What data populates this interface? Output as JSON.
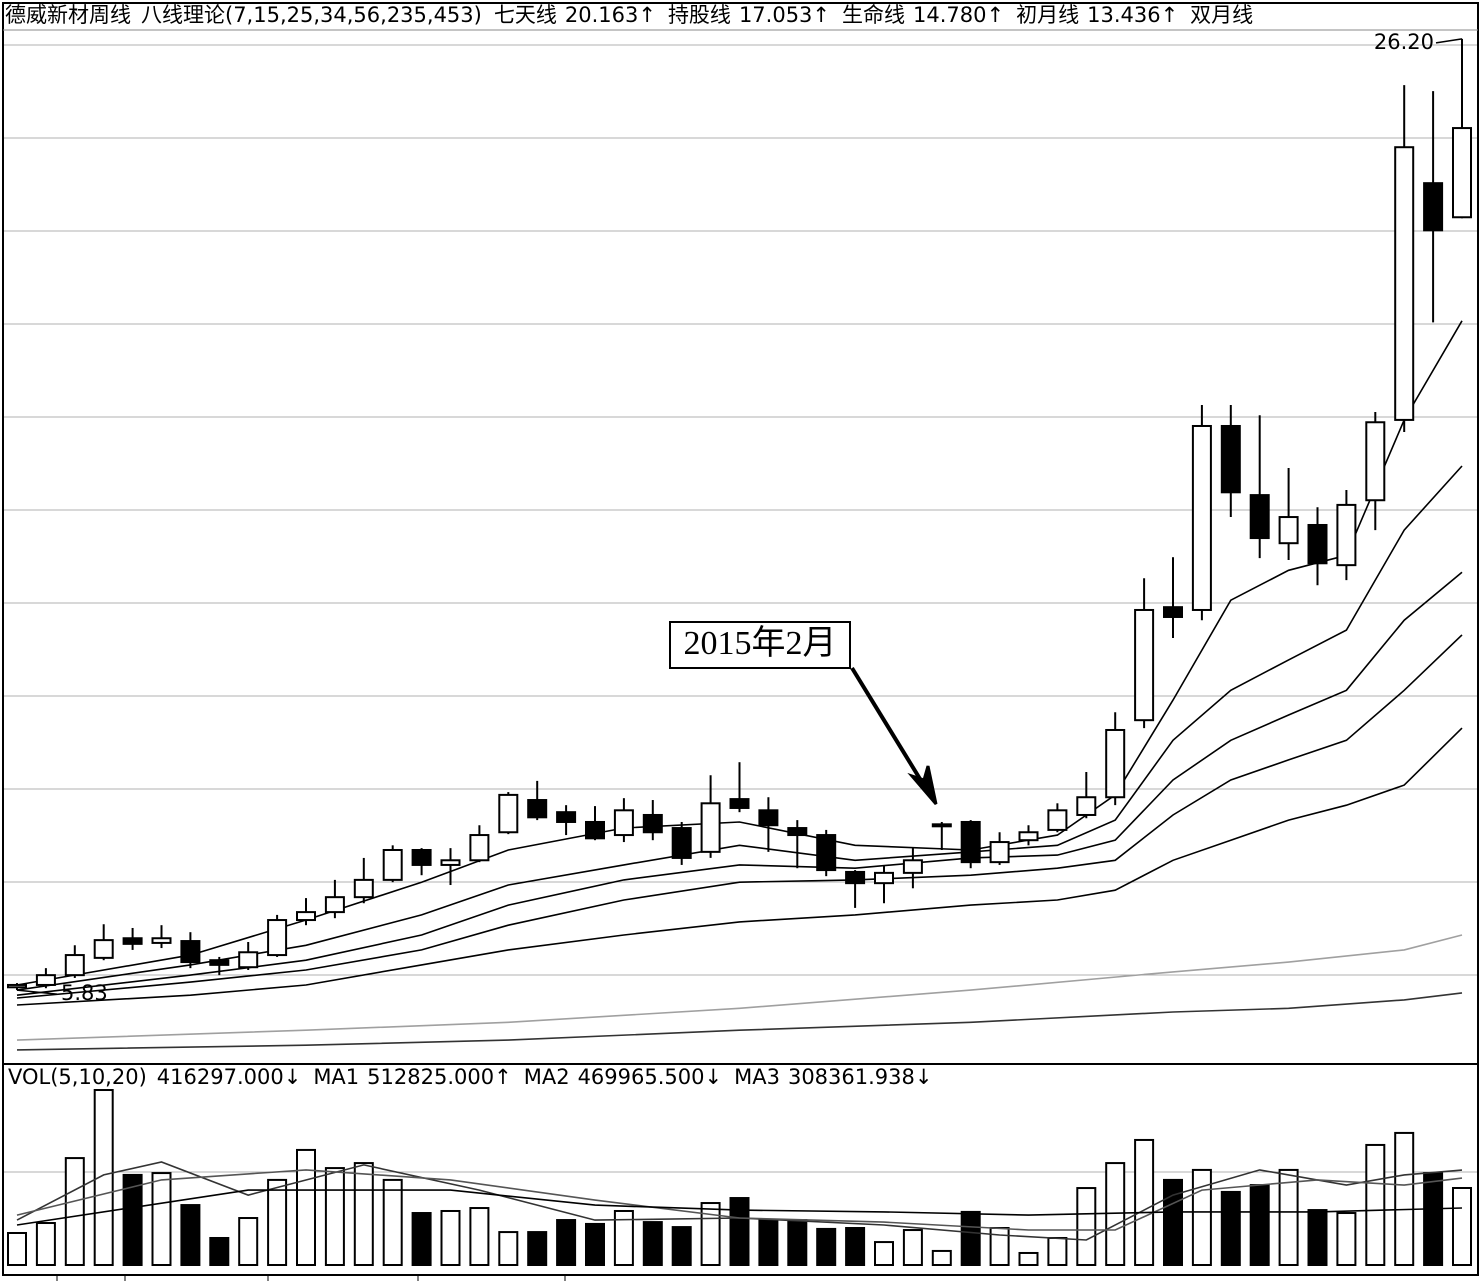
{
  "chart_data": [
    {
      "type": "candlestick",
      "title": "德威新材周线",
      "subtitle": "八线理论(7,15,25,34,56,235,453)",
      "max_label": "26.20",
      "min_label": "5.83",
      "annotation": "2015年2月",
      "ylim": [
        4.29,
        26.39
      ],
      "categories": [
        null,
        null,
        null,
        null,
        null,
        null,
        null,
        null,
        null,
        null,
        null,
        null,
        null,
        null,
        null,
        null,
        null,
        null,
        null,
        null,
        null,
        null,
        null,
        null,
        null,
        null,
        null,
        null,
        null,
        null,
        null,
        null,
        null,
        null,
        null,
        null,
        null,
        null,
        null,
        null,
        null,
        null,
        null,
        null,
        null,
        null,
        null,
        null,
        null,
        null,
        null
      ],
      "open": [
        5.89,
        5.94,
        6.15,
        6.52,
        6.94,
        6.84,
        6.88,
        6.47,
        6.32,
        6.58,
        7.33,
        7.5,
        7.82,
        8.19,
        8.83,
        8.51,
        8.61,
        9.21,
        9.9,
        9.64,
        9.43,
        9.15,
        9.58,
        9.3,
        8.79,
        9.92,
        9.68,
        9.3,
        9.15,
        8.36,
        8.12,
        8.34,
        9.36,
        9.43,
        8.57,
        9.04,
        9.26,
        9.58,
        9.96,
        11.61,
        14.03,
        13.97,
        17.91,
        16.43,
        15.4,
        15.79,
        14.93,
        16.32,
        18.04,
        23.11,
        22.38
      ],
      "high": [
        5.98,
        6.3,
        6.79,
        7.24,
        7.16,
        7.22,
        7.07,
        6.54,
        6.86,
        7.44,
        7.8,
        8.19,
        8.66,
        8.93,
        8.87,
        8.87,
        9.36,
        10.07,
        10.31,
        9.79,
        9.77,
        9.94,
        9.9,
        9.43,
        10.43,
        10.71,
        9.96,
        9.47,
        9.26,
        8.4,
        8.49,
        8.87,
        9.43,
        9.47,
        9.21,
        9.36,
        9.83,
        10.5,
        11.78,
        14.65,
        15.1,
        18.36,
        18.36,
        18.14,
        17.01,
        16.17,
        16.54,
        18.21,
        25.21,
        25.08,
        26.2
      ],
      "low": [
        5.83,
        5.87,
        6.09,
        6.47,
        6.69,
        6.73,
        6.3,
        6.15,
        6.26,
        6.54,
        7.22,
        7.37,
        7.69,
        8.14,
        8.29,
        8.08,
        8.57,
        9.17,
        9.47,
        9.15,
        9.04,
        9.0,
        9.04,
        8.51,
        8.66,
        9.64,
        8.79,
        8.44,
        8.27,
        7.59,
        7.69,
        8.01,
        8.83,
        8.44,
        8.51,
        8.93,
        9.21,
        9.51,
        9.79,
        11.44,
        13.37,
        13.75,
        15.96,
        15.08,
        15.04,
        14.5,
        14.61,
        15.68,
        17.78,
        20.13,
        22.36
      ],
      "close": [
        5.94,
        6.15,
        6.58,
        6.9,
        6.82,
        6.94,
        6.43,
        6.37,
        6.64,
        7.33,
        7.5,
        7.82,
        8.19,
        8.83,
        8.51,
        8.61,
        9.15,
        10.01,
        9.53,
        9.43,
        9.08,
        9.68,
        9.21,
        8.66,
        9.83,
        9.73,
        9.36,
        9.15,
        8.4,
        8.12,
        8.34,
        8.61,
        9.38,
        8.57,
        9.0,
        9.21,
        9.68,
        9.96,
        11.4,
        13.97,
        13.82,
        17.91,
        16.49,
        15.51,
        15.96,
        14.97,
        16.22,
        17.99,
        23.88,
        22.1,
        24.29
      ],
      "series": [
        {
          "name": "七天线",
          "legend_value": "20.163↑",
          "color": "#000000",
          "x": [
            0,
            6,
            10,
            14,
            17,
            21,
            25,
            29,
            33,
            36,
            38,
            40,
            42,
            44,
            46,
            48,
            50
          ],
          "values": [
            5.94,
            6.58,
            7.33,
            8.14,
            8.83,
            9.3,
            9.43,
            8.93,
            8.83,
            9.15,
            10.01,
            12.04,
            14.18,
            14.82,
            15.14,
            18.04,
            20.163
          ]
        },
        {
          "name": "持股线",
          "legend_value": "17.053↑",
          "color": "#000000",
          "x": [
            0,
            6,
            10,
            14,
            17,
            21,
            25,
            29,
            33,
            36,
            38,
            40,
            42,
            44,
            46,
            48,
            50
          ],
          "values": [
            5.83,
            6.37,
            6.79,
            7.44,
            8.08,
            8.51,
            8.93,
            8.61,
            8.79,
            8.93,
            9.47,
            11.18,
            12.25,
            12.9,
            13.54,
            15.68,
            17.053
          ]
        },
        {
          "name": "生命线",
          "legend_value": "14.780↑",
          "color": "#000000",
          "x": [
            0,
            6,
            10,
            14,
            17,
            21,
            25,
            29,
            33,
            36,
            38,
            40,
            42,
            44,
            46,
            48,
            50
          ],
          "values": [
            5.72,
            6.15,
            6.47,
            7.01,
            7.65,
            8.19,
            8.51,
            8.44,
            8.66,
            8.72,
            9.04,
            10.33,
            11.18,
            11.72,
            12.25,
            13.75,
            14.78
          ]
        },
        {
          "name": "初月线",
          "legend_value": "13.436↑",
          "color": "#000000",
          "x": [
            0,
            6,
            10,
            14,
            17,
            21,
            25,
            29,
            33,
            36,
            38,
            40,
            42,
            44,
            46,
            48,
            50
          ],
          "values": [
            5.66,
            6.0,
            6.26,
            6.69,
            7.22,
            7.76,
            8.14,
            8.19,
            8.29,
            8.44,
            8.61,
            9.58,
            10.33,
            10.76,
            11.18,
            12.25,
            13.436
          ]
        },
        {
          "name": "双月线",
          "color": "#000000",
          "x": [
            0,
            6,
            10,
            14,
            17,
            21,
            25,
            29,
            33,
            36,
            38,
            40,
            42,
            44,
            46,
            48,
            50
          ],
          "values": [
            5.51,
            5.72,
            5.94,
            6.37,
            6.69,
            7.01,
            7.29,
            7.44,
            7.65,
            7.76,
            7.97,
            8.61,
            9.04,
            9.47,
            9.79,
            10.22,
            11.44
          ]
        },
        {
          "color": "#a0a0a0",
          "x": [
            0,
            10,
            17,
            25,
            33,
            40,
            44,
            48,
            50
          ],
          "values": [
            4.76,
            4.97,
            5.14,
            5.44,
            5.83,
            6.22,
            6.43,
            6.69,
            7.01
          ]
        },
        {
          "color": "#333333",
          "x": [
            0,
            10,
            17,
            25,
            33,
            40,
            44,
            48,
            50
          ],
          "values": [
            4.55,
            4.65,
            4.76,
            4.97,
            5.14,
            5.36,
            5.44,
            5.62,
            5.77
          ]
        }
      ]
    },
    {
      "type": "bar",
      "title": "VOL(5,10,20)",
      "last_label": "416297.000↓",
      "ylim": [
        0,
        1065000
      ],
      "values": [
        173000,
        227000,
        578000,
        946000,
        487000,
        497000,
        324000,
        146000,
        254000,
        460000,
        622000,
        524000,
        551000,
        460000,
        281000,
        292000,
        308000,
        178000,
        178000,
        243000,
        222000,
        292000,
        232000,
        205000,
        335000,
        362000,
        243000,
        243000,
        195000,
        200000,
        124000,
        189000,
        76000,
        287000,
        200000,
        65000,
        146000,
        416000,
        551000,
        676000,
        460000,
        514000,
        395000,
        432000,
        514000,
        297000,
        281000,
        649000,
        714000,
        497000,
        416297
      ],
      "series": [
        {
          "name": "MA1",
          "legend_value": "512825.000↑",
          "color": "#333333",
          "x": [
            0,
            3,
            5,
            8,
            12,
            16,
            20,
            25,
            30,
            34,
            37,
            40,
            43,
            46,
            48,
            50
          ],
          "values": [
            243000,
            487000,
            557000,
            378000,
            541000,
            405000,
            243000,
            254000,
            216000,
            162000,
            135000,
            378000,
            514000,
            432000,
            487000,
            512825
          ]
        },
        {
          "name": "MA2",
          "legend_value": "469965.500↓",
          "color": "#555555",
          "x": [
            0,
            5,
            10,
            15,
            20,
            25,
            30,
            35,
            38,
            41,
            45,
            48,
            50
          ],
          "values": [
            270000,
            460000,
            514000,
            460000,
            351000,
            254000,
            232000,
            189000,
            189000,
            405000,
            460000,
            432000,
            469965.5
          ]
        },
        {
          "name": "MA3",
          "legend_value": "308361.938↓",
          "color": "#000000",
          "x": [
            0,
            8,
            15,
            20,
            25,
            30,
            35,
            40,
            45,
            50
          ],
          "values": [
            216000,
            405000,
            405000,
            324000,
            297000,
            287000,
            270000,
            287000,
            287000,
            308361.938
          ]
        }
      ]
    }
  ]
}
